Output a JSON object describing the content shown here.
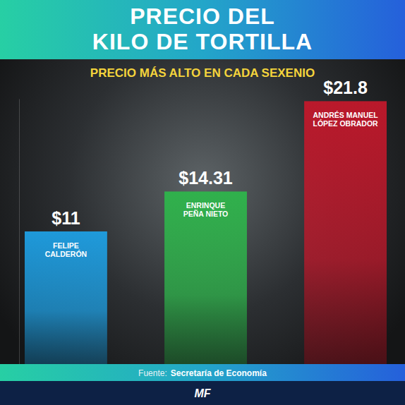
{
  "chart_data": {
    "type": "bar",
    "title": [
      "PRECIO DEL",
      "KILO DE TORTILLA"
    ],
    "subtitle": "PRECIO MÁS ALTO EN CADA SEXENIO",
    "categories": [
      "FELIPE\nCALDERÓN",
      "ENRINQUE\nPEÑA NIETO",
      "ANDRÉS MANUEL\nLÓPEZ OBRADOR"
    ],
    "values": [
      11,
      14.31,
      21.8
    ],
    "value_labels": [
      "$11",
      "$14.31",
      "$21.8"
    ],
    "colors": [
      "#1e9fe3",
      "#2eb54b",
      "#c2182b"
    ],
    "ylim": [
      0,
      22
    ],
    "yticks": [],
    "data_labels": true,
    "tick_labels": false,
    "grid": false,
    "annotations": [
      "Fuente:",
      "Secretaría de Economía",
      "MF"
    ]
  }
}
